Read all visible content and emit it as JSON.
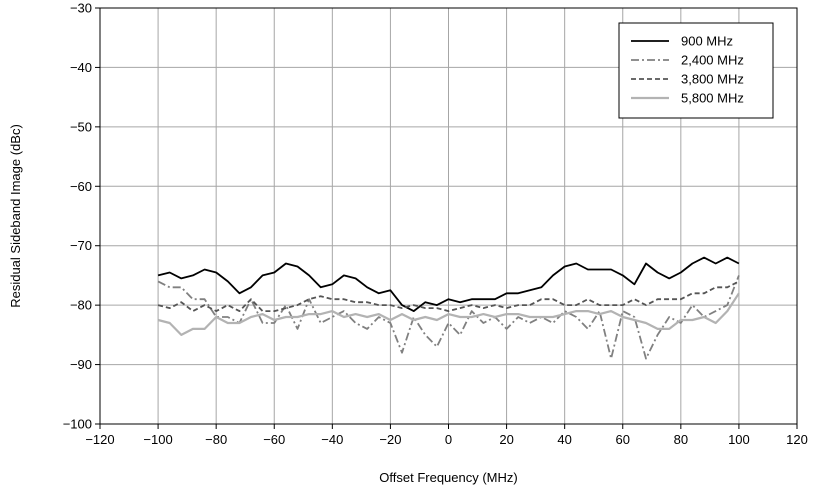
{
  "chart_data": {
    "type": "line",
    "xlabel": "Offset Frequency (MHz)",
    "ylabel": "Residual Sideband Image (dBc)",
    "xlim": [
      -120,
      120
    ],
    "ylim": [
      -100,
      -30
    ],
    "x_ticks": [
      -120,
      -100,
      -80,
      -60,
      -40,
      -20,
      0,
      20,
      40,
      60,
      80,
      100,
      120
    ],
    "y_ticks": [
      -100,
      -90,
      -80,
      -70,
      -60,
      -50,
      -40,
      -30
    ],
    "x_tick_labels": [
      "−120",
      "−100",
      "−80",
      "−60",
      "−40",
      "−20",
      "0",
      "20",
      "40",
      "60",
      "80",
      "100",
      "120"
    ],
    "y_tick_labels": [
      "−100",
      "−90",
      "−80",
      "−70",
      "−60",
      "−50",
      "−40",
      "−30"
    ],
    "grid": true,
    "legend_position": "top-right",
    "x": [
      -100,
      -96,
      -92,
      -88,
      -84,
      -80,
      -76,
      -72,
      -68,
      -64,
      -60,
      -56,
      -52,
      -48,
      -44,
      -40,
      -36,
      -32,
      -28,
      -24,
      -20,
      -16,
      -12,
      -8,
      -4,
      0,
      4,
      8,
      12,
      16,
      20,
      24,
      28,
      32,
      36,
      40,
      44,
      48,
      52,
      56,
      60,
      64,
      68,
      72,
      76,
      80,
      84,
      88,
      92,
      96,
      100
    ],
    "series": [
      {
        "name": "900 MHz",
        "color": "#000000",
        "dash": "solid",
        "values": [
          -75,
          -74.5,
          -75.5,
          -75,
          -74,
          -74.5,
          -76,
          -78,
          -77,
          -75,
          -74.5,
          -73,
          -73.5,
          -75,
          -77,
          -76.5,
          -75,
          -75.5,
          -77,
          -78,
          -77.5,
          -80,
          -81,
          -79.5,
          -80,
          -79,
          -79.5,
          -79,
          -79,
          -79,
          -78,
          -78,
          -77.5,
          -77,
          -75,
          -73.5,
          -73,
          -74,
          -74,
          -74,
          -75,
          -76.5,
          -73,
          -74.5,
          -75.5,
          -74.5,
          -73,
          -72,
          -73,
          -72,
          -73
        ]
      },
      {
        "name": "2,400 MHz",
        "color": "#808080",
        "dash": "8,3,2,3",
        "values": [
          -76,
          -77,
          -77,
          -79,
          -79,
          -82,
          -82,
          -83,
          -79,
          -83,
          -83,
          -80,
          -84,
          -79,
          -83,
          -82,
          -81,
          -83,
          -84,
          -82,
          -83,
          -88,
          -82,
          -85,
          -87,
          -83,
          -85,
          -81,
          -83,
          -82,
          -84,
          -82,
          -83,
          -82,
          -83,
          -81,
          -82,
          -84,
          -81,
          -89,
          -81,
          -82,
          -89,
          -85,
          -82,
          -83,
          -80,
          -82,
          -81,
          -80,
          -75
        ]
      },
      {
        "name": "3,800 MHz",
        "color": "#555555",
        "dash": "5,3",
        "values": [
          -80,
          -80.5,
          -79.5,
          -81,
          -80,
          -81,
          -80,
          -81,
          -79,
          -81,
          -81,
          -80.5,
          -80,
          -79,
          -78.5,
          -79,
          -79,
          -79.5,
          -79.5,
          -80,
          -80,
          -80.5,
          -80,
          -80.5,
          -80.5,
          -81,
          -80.5,
          -80,
          -80.5,
          -80,
          -80.5,
          -80,
          -80,
          -79,
          -79,
          -80,
          -80,
          -79,
          -80,
          -80,
          -80,
          -79,
          -80,
          -79,
          -79,
          -79,
          -78,
          -78,
          -77,
          -77,
          -76
        ]
      },
      {
        "name": "5,800 MHz",
        "color": "#b3b3b3",
        "dash": "solid",
        "values": [
          -82.5,
          -83,
          -85,
          -84,
          -84,
          -82,
          -83,
          -83,
          -82,
          -81.5,
          -82.5,
          -82,
          -82,
          -81.5,
          -81.5,
          -81,
          -82,
          -81.5,
          -82,
          -81.5,
          -82.5,
          -81.5,
          -82.5,
          -82,
          -82.5,
          -81.5,
          -82,
          -82,
          -81.5,
          -82,
          -81.5,
          -81.5,
          -82,
          -82,
          -82,
          -81.5,
          -81,
          -81,
          -81.5,
          -81,
          -82,
          -82.5,
          -83,
          -84,
          -84,
          -82.5,
          -82.5,
          -82,
          -83,
          -81,
          -78
        ]
      }
    ]
  }
}
